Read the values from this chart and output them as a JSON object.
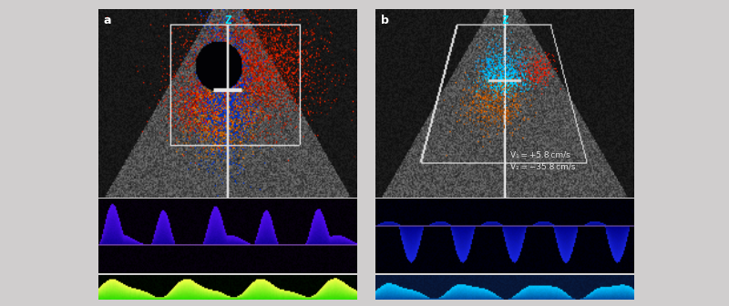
{
  "figsize": [
    8.0,
    3.36
  ],
  "dpi": 100,
  "bg_color": "#d0cece",
  "panel_a_label": "a",
  "panel_b_label": "b",
  "z_color": "#00e5ff",
  "white": "#ffffff",
  "annotation_line1": "V₁ = +5.8 cm/s",
  "annotation_line2": "V₂ = −35.8 cm/s",
  "annotation_color": "#e0e0e0",
  "annotation_fontsize": 6.5
}
